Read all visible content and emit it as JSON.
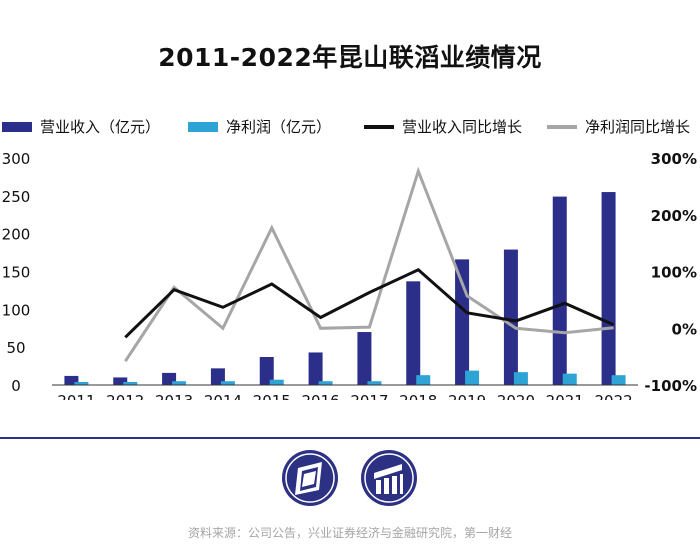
{
  "page_title": "2011-2022年昆山联滔业绩情况",
  "colors": {
    "revenue": "#2b2f8a",
    "profit": "#2ea3d6",
    "revenue_growth": "#111111",
    "profit_growth": "#a6a6a6",
    "axis": "#333333",
    "brand": "#2c3184"
  },
  "legend": {
    "revenue": "营业收入（亿元）",
    "profit": "净利润（亿元）",
    "revenue_growth": "营业收入同比增长",
    "profit_growth": "净利润同比增长"
  },
  "chart_data": {
    "type": "bar",
    "title": "2011-2022年昆山联滔业绩情况",
    "categories": [
      "2011",
      "2012",
      "2013",
      "2014",
      "2015",
      "2016",
      "2017",
      "2018",
      "2019",
      "2020",
      "2021",
      "2022"
    ],
    "series": [
      {
        "name": "营业收入（亿元）",
        "type": "bar",
        "axis": "left",
        "values": [
          12,
          10,
          16,
          22,
          37,
          43,
          70,
          137,
          166,
          179,
          249,
          255
        ]
      },
      {
        "name": "净利润（亿元）",
        "type": "bar",
        "axis": "left",
        "values": [
          4,
          4,
          5,
          5,
          7,
          5,
          5,
          13,
          19,
          17,
          15,
          13
        ]
      },
      {
        "name": "营业收入同比增长",
        "type": "line",
        "axis": "right",
        "values": [
          null,
          -16,
          68,
          37,
          78,
          19,
          63,
          103,
          27,
          13,
          44,
          6
        ]
      },
      {
        "name": "净利润同比增长",
        "type": "line",
        "axis": "right",
        "values": [
          null,
          -58,
          72,
          0,
          177,
          0,
          2,
          277,
          57,
          0,
          -8,
          1
        ]
      }
    ],
    "left_axis": {
      "ylim": [
        0,
        300
      ],
      "ticks": [
        "0",
        "50",
        "100",
        "150",
        "200",
        "250",
        "300"
      ]
    },
    "right_axis": {
      "ylim": [
        -100,
        300
      ],
      "ticks": [
        "-100%",
        "0%",
        "100%",
        "200%",
        "300%"
      ]
    },
    "grid": false,
    "legend_position": "top"
  },
  "source": "资料来源：公司公告，兴业证券经济与金融研究院，第一财经"
}
